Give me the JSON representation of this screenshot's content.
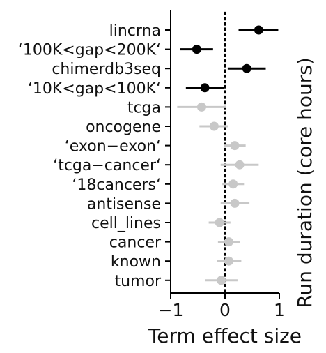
{
  "chart_data": {
    "type": "scatter",
    "subtype": "coefficient-plot",
    "xlabel": "Term effect size",
    "ylabel": "Run duration (core hours)",
    "xlim": [
      -1.15,
      1.1
    ],
    "xticks": [
      -1,
      0,
      1
    ],
    "xtick_labels": [
      "−1",
      "0",
      "1"
    ],
    "reference_line": {
      "x": 0,
      "style": "dotted"
    },
    "grid": false,
    "colors": {
      "significant": "#000000",
      "not_significant": "#c8c8c8"
    },
    "terms": [
      {
        "label": "lincrna",
        "estimate": 0.62,
        "ci": [
          0.25,
          0.98
        ],
        "significant": true
      },
      {
        "label": "‘100K<gap<200K‘",
        "estimate": -0.52,
        "ci": [
          -0.83,
          -0.22
        ],
        "significant": true
      },
      {
        "label": "chimerdb3seq",
        "estimate": 0.4,
        "ci": [
          0.05,
          0.75
        ],
        "significant": true
      },
      {
        "label": "‘10K<gap<100K‘",
        "estimate": -0.37,
        "ci": [
          -0.72,
          -0.02
        ],
        "significant": true
      },
      {
        "label": "tcga",
        "estimate": -0.43,
        "ci": [
          -0.88,
          0.02
        ],
        "significant": false
      },
      {
        "label": "oncogene",
        "estimate": -0.2,
        "ci": [
          -0.47,
          0.06
        ],
        "significant": false
      },
      {
        "label": "‘exon−exon‘",
        "estimate": 0.18,
        "ci": [
          -0.02,
          0.38
        ],
        "significant": false
      },
      {
        "label": "‘tcga−cancer‘",
        "estimate": 0.27,
        "ci": [
          -0.08,
          0.62
        ],
        "significant": false
      },
      {
        "label": "‘18cancers‘",
        "estimate": 0.15,
        "ci": [
          -0.05,
          0.35
        ],
        "significant": false
      },
      {
        "label": "antisense",
        "estimate": 0.18,
        "ci": [
          -0.08,
          0.45
        ],
        "significant": false
      },
      {
        "label": "cell_lines",
        "estimate": -0.1,
        "ci": [
          -0.3,
          0.1
        ],
        "significant": false
      },
      {
        "label": "cancer",
        "estimate": 0.07,
        "ci": [
          -0.13,
          0.27
        ],
        "significant": false
      },
      {
        "label": "known",
        "estimate": 0.07,
        "ci": [
          -0.15,
          0.3
        ],
        "significant": false
      },
      {
        "label": "tumor",
        "estimate": -0.07,
        "ci": [
          -0.37,
          0.23
        ],
        "significant": false
      }
    ]
  }
}
